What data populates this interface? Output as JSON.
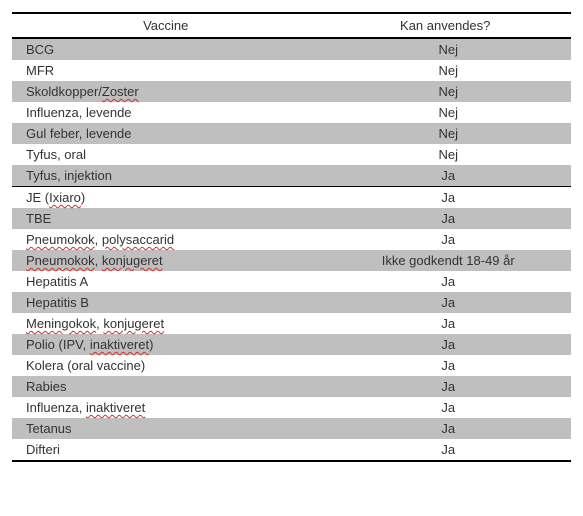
{
  "headers": {
    "vaccine": "Vaccine",
    "usage": "Kan anvendes?"
  },
  "colors": {
    "row_grey": "#bfbfbf",
    "row_white": "#ffffff",
    "border": "#000000",
    "text": "#333333",
    "squiggle": "#d03030",
    "background": "#ffffff"
  },
  "rows": [
    {
      "vaccine_parts": [
        {
          "t": "BCG",
          "u": false
        }
      ],
      "usage": "Nej",
      "bg": "grey",
      "section_break": false
    },
    {
      "vaccine_parts": [
        {
          "t": "MFR",
          "u": false
        }
      ],
      "usage": "Nej",
      "bg": "white",
      "section_break": false
    },
    {
      "vaccine_parts": [
        {
          "t": "Skoldkopper/",
          "u": false
        },
        {
          "t": "Zoster",
          "u": true
        }
      ],
      "usage": "Nej",
      "bg": "grey",
      "section_break": false
    },
    {
      "vaccine_parts": [
        {
          "t": "Influenza, levende",
          "u": false
        }
      ],
      "usage": "Nej",
      "bg": "white",
      "section_break": false
    },
    {
      "vaccine_parts": [
        {
          "t": "Gul feber, levende",
          "u": false
        }
      ],
      "usage": "Nej",
      "bg": "grey",
      "section_break": false
    },
    {
      "vaccine_parts": [
        {
          "t": "Tyfus, oral",
          "u": false
        }
      ],
      "usage": "Nej",
      "bg": "white",
      "section_break": false
    },
    {
      "vaccine_parts": [
        {
          "t": "Tyfus, injektion",
          "u": false
        }
      ],
      "usage": "Ja",
      "bg": "grey",
      "section_break": false
    },
    {
      "vaccine_parts": [
        {
          "t": "JE (",
          "u": false
        },
        {
          "t": "Ixiaro",
          "u": true
        },
        {
          "t": ")",
          "u": false
        }
      ],
      "usage": "Ja",
      "bg": "white",
      "section_break": true
    },
    {
      "vaccine_parts": [
        {
          "t": "TBE",
          "u": false
        }
      ],
      "usage": "Ja",
      "bg": "grey",
      "section_break": false
    },
    {
      "vaccine_parts": [
        {
          "t": "Pneumokok",
          "u": true
        },
        {
          "t": ", ",
          "u": false
        },
        {
          "t": "polysaccarid",
          "u": true
        }
      ],
      "usage": "Ja",
      "bg": "white",
      "section_break": false
    },
    {
      "vaccine_parts": [
        {
          "t": "Pneumokok",
          "u": true
        },
        {
          "t": ", ",
          "u": false
        },
        {
          "t": "konjugeret",
          "u": true
        }
      ],
      "usage": "Ikke godkendt 18-49 år",
      "bg": "grey",
      "section_break": false
    },
    {
      "vaccine_parts": [
        {
          "t": "Hepatitis A",
          "u": false
        }
      ],
      "usage": "Ja",
      "bg": "white",
      "section_break": false
    },
    {
      "vaccine_parts": [
        {
          "t": "Hepatitis B",
          "u": false
        }
      ],
      "usage": "Ja",
      "bg": "grey",
      "section_break": false
    },
    {
      "vaccine_parts": [
        {
          "t": "Meningokok",
          "u": true
        },
        {
          "t": ", ",
          "u": false
        },
        {
          "t": "konjugeret",
          "u": true
        }
      ],
      "usage": "Ja",
      "bg": "white",
      "section_break": false
    },
    {
      "vaccine_parts": [
        {
          "t": "Polio (IPV, ",
          "u": false
        },
        {
          "t": "inaktiveret",
          "u": true
        },
        {
          "t": ")",
          "u": false
        }
      ],
      "usage": "Ja",
      "bg": "grey",
      "section_break": false
    },
    {
      "vaccine_parts": [
        {
          "t": "Kolera (oral vaccine)",
          "u": false
        }
      ],
      "usage": "Ja",
      "bg": "white",
      "section_break": false
    },
    {
      "vaccine_parts": [
        {
          "t": "Rabies",
          "u": false
        }
      ],
      "usage": "Ja",
      "bg": "grey",
      "section_break": false
    },
    {
      "vaccine_parts": [
        {
          "t": "Influenza, ",
          "u": false
        },
        {
          "t": "inaktiveret",
          "u": true
        }
      ],
      "usage": "Ja",
      "bg": "white",
      "section_break": false
    },
    {
      "vaccine_parts": [
        {
          "t": "Tetanus",
          "u": false
        }
      ],
      "usage": "Ja",
      "bg": "grey",
      "section_break": false
    },
    {
      "vaccine_parts": [
        {
          "t": "Difteri",
          "u": false
        }
      ],
      "usage": "Ja",
      "bg": "white",
      "section_break": false
    }
  ]
}
